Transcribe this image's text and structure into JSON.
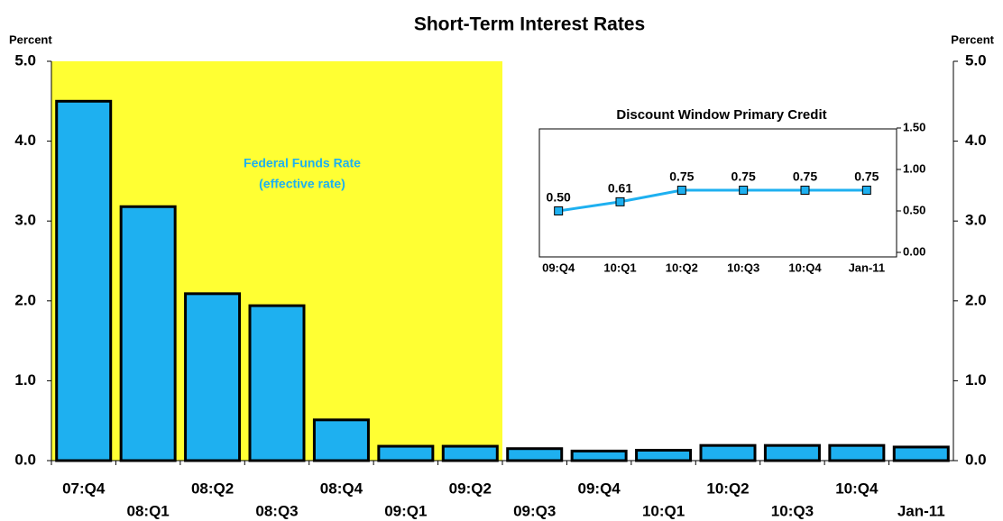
{
  "chart_data": [
    {
      "type": "bar",
      "title": "Short-Term Interest Rates",
      "y_label": "Percent",
      "y2_label": "Percent",
      "annotation": [
        "Federal Funds Rate",
        "(effective rate)"
      ],
      "categories": [
        "07:Q4",
        "08:Q1",
        "08:Q2",
        "08:Q3",
        "08:Q4",
        "09:Q1",
        "09:Q2",
        "09:Q3",
        "09:Q4",
        "10:Q1",
        "10:Q2",
        "10:Q3",
        "10:Q4",
        "Jan-11"
      ],
      "values": [
        4.5,
        3.18,
        2.09,
        1.94,
        0.51,
        0.18,
        0.18,
        0.15,
        0.12,
        0.13,
        0.19,
        0.19,
        0.19,
        0.17
      ],
      "color": "#1eb0f0",
      "shade": {
        "from": 0,
        "to": 6,
        "color": "#ffff33"
      },
      "ylim": [
        0,
        5
      ],
      "yticks": [
        {
          "value": 0,
          "label": "0.0"
        },
        {
          "value": 1,
          "label": "1.0"
        },
        {
          "value": 2,
          "label": "2.0"
        },
        {
          "value": 3,
          "label": "3.0"
        },
        {
          "value": 4,
          "label": "4.0"
        },
        {
          "value": 5,
          "label": "5.0"
        }
      ],
      "y2lim": [
        0,
        5
      ],
      "y2ticks": [
        {
          "value": 0,
          "label": "0.0"
        },
        {
          "value": 1,
          "label": "1.0"
        },
        {
          "value": 2,
          "label": "2.0"
        },
        {
          "value": 3,
          "label": "3.0"
        },
        {
          "value": 4,
          "label": "4.0"
        },
        {
          "value": 5,
          "label": "5.0"
        }
      ]
    },
    {
      "type": "line",
      "title": "Discount Window Primary Credit",
      "categories": [
        "09:Q4",
        "10:Q1",
        "10:Q2",
        "10:Q3",
        "10:Q4",
        "Jan-11"
      ],
      "values": [
        0.5,
        0.61,
        0.75,
        0.75,
        0.75,
        0.75
      ],
      "value_labels": [
        "0.50",
        "0.61",
        "0.75",
        "0.75",
        "0.75",
        "0.75"
      ],
      "color": "#1eb0f0",
      "ylim": [
        0,
        1.5
      ],
      "yticks": [
        {
          "value": 0,
          "label": "0.00"
        },
        {
          "value": 0.5,
          "label": "0.50"
        },
        {
          "value": 1,
          "label": "1.00"
        },
        {
          "value": 1.5,
          "label": "1.50"
        }
      ]
    }
  ]
}
